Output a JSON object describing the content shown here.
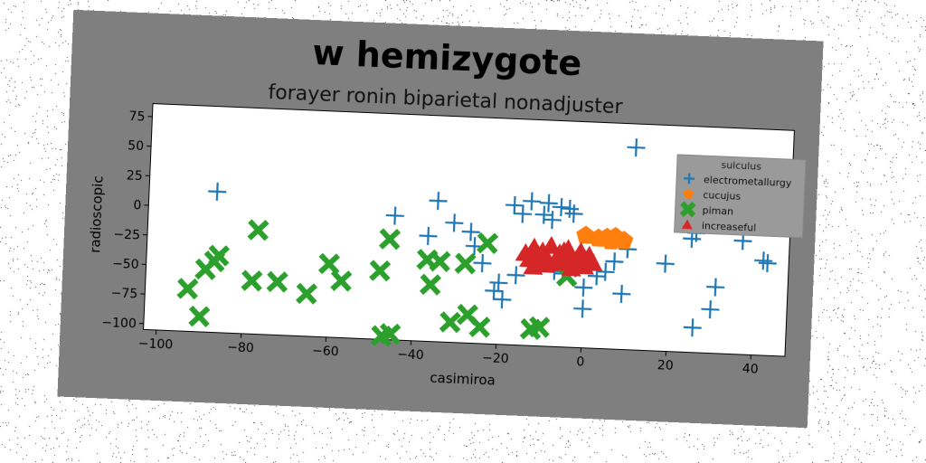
{
  "chart_data": {
    "type": "scatter",
    "title": "w hemizygote",
    "subtitle": "forayer ronin biparietal nonadjuster",
    "xlabel": "casimiroa",
    "ylabel": "radioscopic",
    "xlim": [
      -103,
      48
    ],
    "ylim": [
      -105,
      86
    ],
    "xticks": [
      "−100",
      "−80",
      "−60",
      "−40",
      "−20",
      "0",
      "20",
      "40"
    ],
    "xtick_values": [
      -100,
      -80,
      -60,
      -40,
      -20,
      0,
      20,
      40
    ],
    "yticks": [
      "75",
      "50",
      "25",
      "0",
      "−25",
      "−50",
      "−75",
      "−100"
    ],
    "ytick_values": [
      75,
      50,
      25,
      0,
      -25,
      -50,
      -75,
      -100
    ],
    "legend": {
      "title": "sulculus",
      "location": "upper right"
    },
    "series": [
      {
        "name": "electrometallurgy",
        "marker": "plus",
        "color": "#1f77b4",
        "points": [
          [
            -87,
            14
          ],
          [
            -45,
            0
          ],
          [
            -37,
            -16
          ],
          [
            -35,
            14
          ],
          [
            -31,
            -4
          ],
          [
            -27,
            -11
          ],
          [
            -26,
            -23
          ],
          [
            -24,
            -37
          ],
          [
            -21,
            -60
          ],
          [
            -20,
            -53
          ],
          [
            -19,
            -67
          ],
          [
            -17,
            13
          ],
          [
            -16,
            -46
          ],
          [
            -15,
            6
          ],
          [
            -13,
            17
          ],
          [
            -11,
            -34
          ],
          [
            -10,
            6
          ],
          [
            -9,
            16
          ],
          [
            -8,
            2
          ],
          [
            -7,
            -41
          ],
          [
            -6,
            13
          ],
          [
            -5,
            -43
          ],
          [
            -4,
            12
          ],
          [
            -3,
            8
          ],
          [
            -2,
            -38
          ],
          [
            0,
            -54
          ],
          [
            0,
            -72
          ],
          [
            3,
            -44
          ],
          [
            5,
            -40
          ],
          [
            7,
            -31
          ],
          [
            9,
            -58
          ],
          [
            10,
            -20
          ],
          [
            11,
            66
          ],
          [
            19,
            -31
          ],
          [
            25,
            -9
          ],
          [
            26,
            -4
          ],
          [
            26,
            -84
          ],
          [
            30,
            -68
          ],
          [
            31,
            -49
          ],
          [
            37,
            -9
          ],
          [
            42,
            -25
          ],
          [
            43,
            -27
          ]
        ]
      },
      {
        "name": "cucujus",
        "marker": "pentagon",
        "color": "#ff7f0e",
        "points": [
          [
            0,
            -10
          ],
          [
            3,
            -12
          ],
          [
            5,
            -11
          ],
          [
            7,
            -10
          ],
          [
            9,
            -13
          ],
          [
            6,
            -14
          ]
        ]
      },
      {
        "name": "piman",
        "marker": "x",
        "color": "#2ca02c",
        "points": [
          [
            -93,
            -69
          ],
          [
            -90,
            -92
          ],
          [
            -89,
            -52
          ],
          [
            -87,
            -45
          ],
          [
            -86,
            -40
          ],
          [
            -78,
            -60
          ],
          [
            -77,
            -17
          ],
          [
            -72,
            -60
          ],
          [
            -65,
            -69
          ],
          [
            -60,
            -43
          ],
          [
            -57,
            -57
          ],
          [
            -48,
            -47
          ],
          [
            -46,
            -20
          ],
          [
            -47,
            -102
          ],
          [
            -45,
            -100
          ],
          [
            -37,
            -36
          ],
          [
            -36,
            -57
          ],
          [
            -34,
            -37
          ],
          [
            -31,
            -88
          ],
          [
            -28,
            -38
          ],
          [
            -27,
            -81
          ],
          [
            -24,
            -91
          ],
          [
            -23,
            -20
          ],
          [
            -12,
            -91
          ],
          [
            -10,
            -89
          ],
          [
            -4,
            -45
          ]
        ]
      },
      {
        "name": "increaseful",
        "marker": "triangle",
        "color": "#d62728",
        "points": [
          [
            -14,
            -27
          ],
          [
            -13,
            -32
          ],
          [
            -12,
            -22
          ],
          [
            -11,
            -35
          ],
          [
            -10,
            -25
          ],
          [
            -9,
            -30
          ],
          [
            -8,
            -20
          ],
          [
            -7,
            -34
          ],
          [
            -6,
            -26
          ],
          [
            -5,
            -31
          ],
          [
            -4,
            -22
          ],
          [
            -3,
            -29
          ],
          [
            -2,
            -35
          ],
          [
            -1,
            -24
          ],
          [
            0,
            -30
          ],
          [
            1,
            -27
          ],
          [
            2,
            -33
          ],
          [
            -12,
            -38
          ],
          [
            -9,
            -36
          ],
          [
            -6,
            -33
          ],
          [
            -3,
            -38
          ],
          [
            0,
            -36
          ],
          [
            -11,
            -28
          ],
          [
            -5,
            -24
          ]
        ]
      }
    ]
  }
}
